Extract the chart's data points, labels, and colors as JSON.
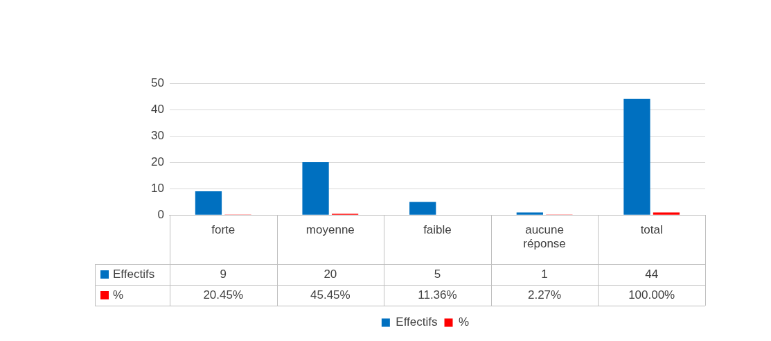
{
  "chart_data": {
    "type": "bar",
    "categories": [
      "forte",
      "moyenne",
      "faible",
      "aucune réponse",
      "total"
    ],
    "series": [
      {
        "name": "Effectifs",
        "color": "#0070c0",
        "values": [
          9,
          20,
          5,
          1,
          44
        ],
        "value_labels": [
          "9",
          "20",
          "5",
          "1",
          "44"
        ]
      },
      {
        "name": "%",
        "color": "#ff0000",
        "values": [
          0.2045,
          0.4545,
          0.1136,
          0.0227,
          1
        ],
        "value_labels": [
          "20.45%",
          "45.45%",
          "11.36%",
          "2.27%",
          "100.00%"
        ]
      }
    ],
    "ylim": [
      0,
      50
    ],
    "yticks": [
      0,
      10,
      20,
      30,
      40,
      50
    ],
    "grid": "y",
    "legend": "bottom"
  }
}
